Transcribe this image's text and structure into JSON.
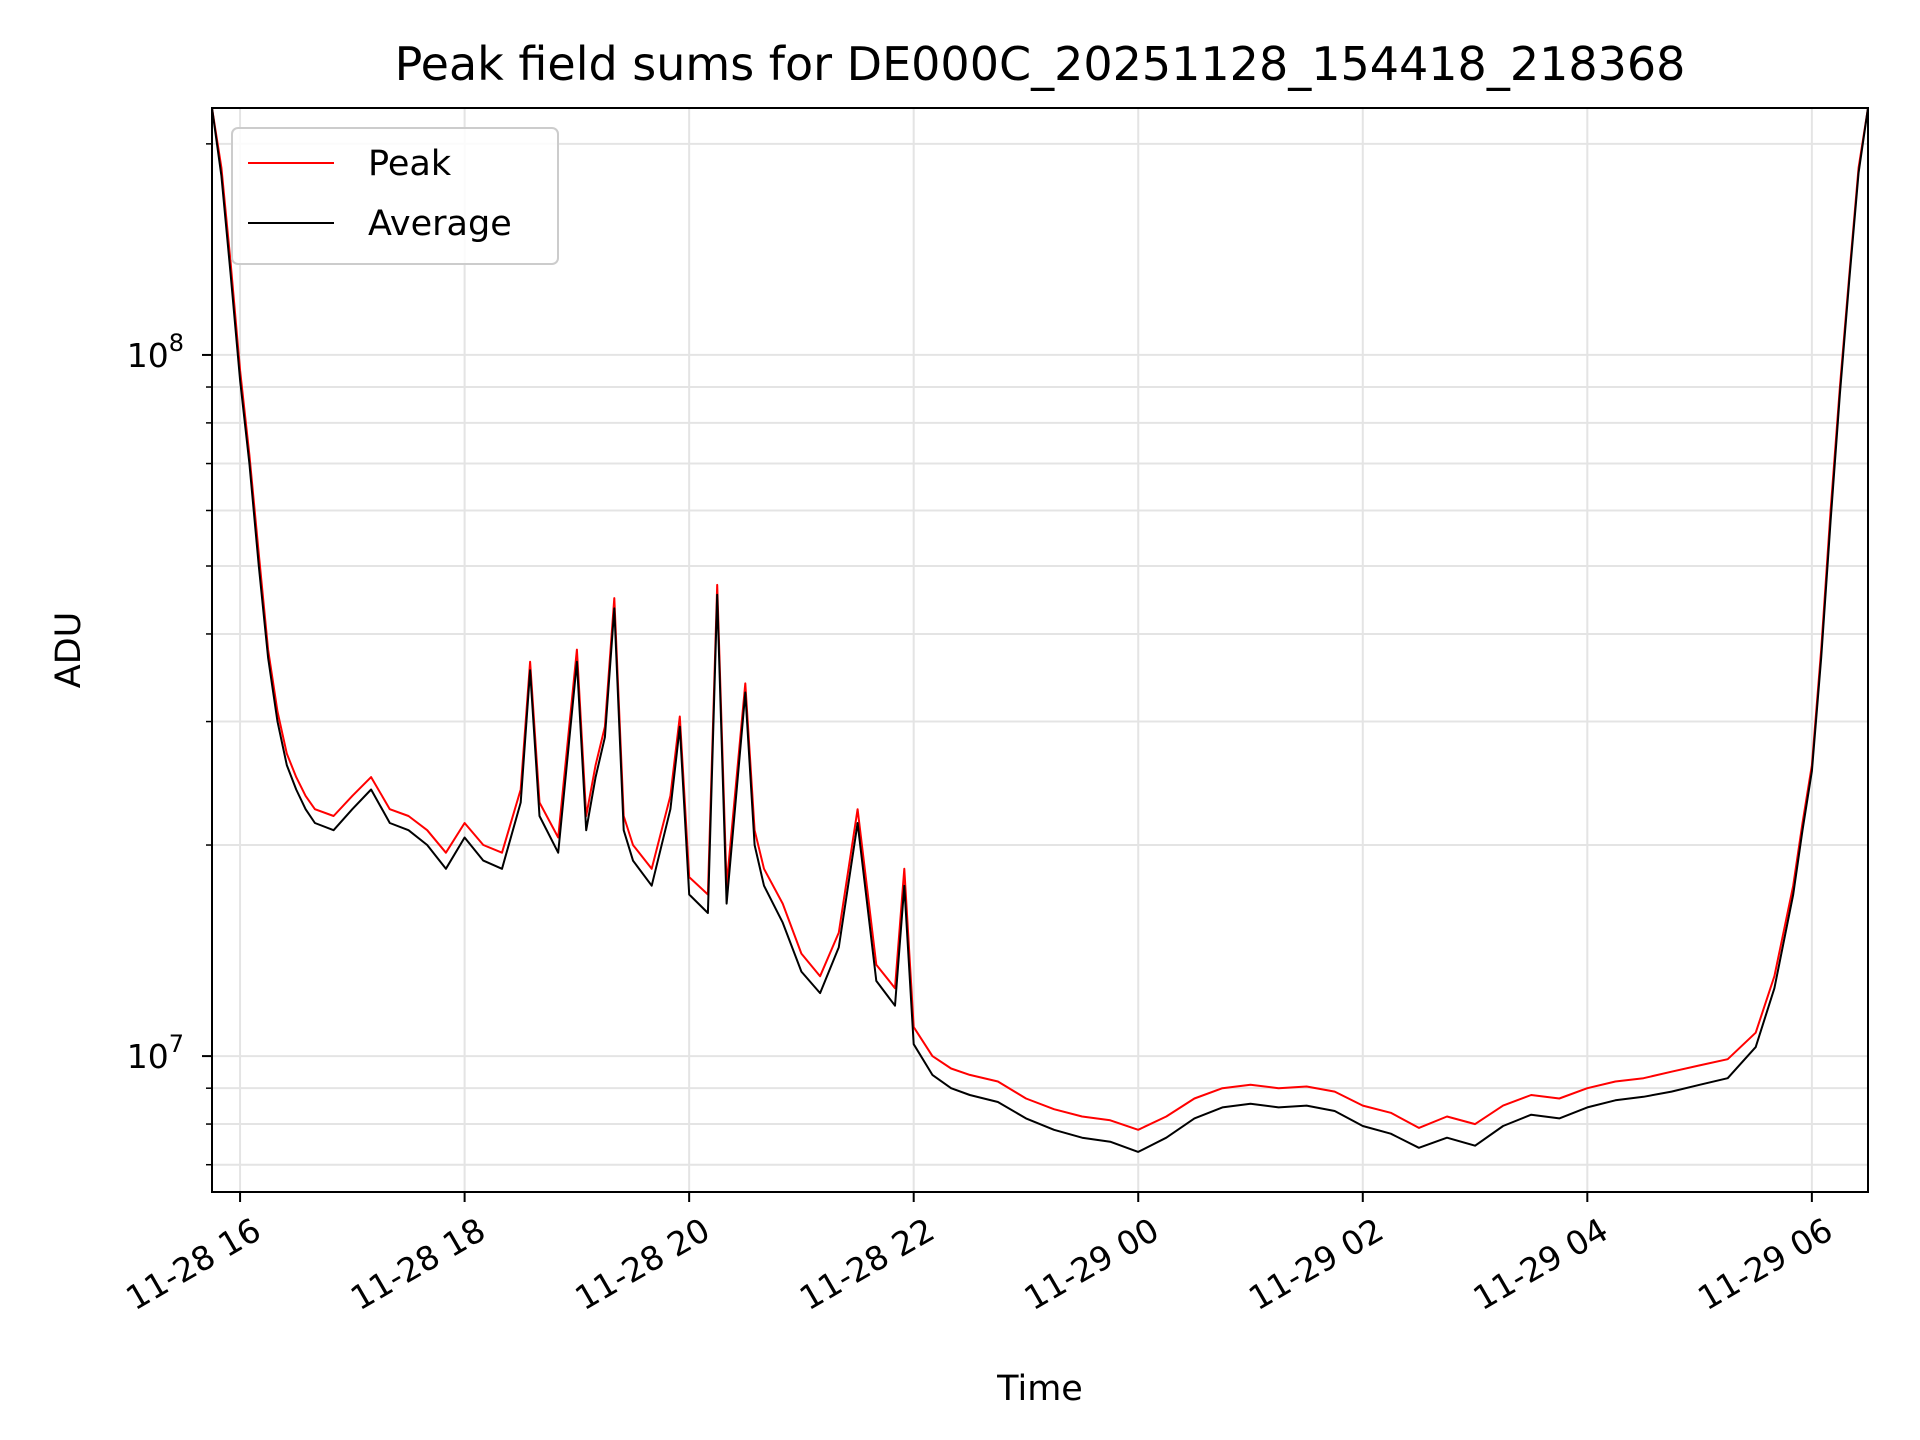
{
  "chart_data": {
    "type": "line",
    "title": "Peak field sums for DE000C_20251128_154418_218368",
    "xlabel": "Time",
    "ylabel": "ADU",
    "yscale": "log",
    "ylim": [
      6400000,
      225000000
    ],
    "xlim": [
      "2025-11-28 15:45",
      "2025-11-29 06:30"
    ],
    "grid": true,
    "legend_position": "top-left",
    "x_ticks": [
      "2025-11-28 16:00",
      "2025-11-28 18:00",
      "2025-11-28 20:00",
      "2025-11-28 22:00",
      "2025-11-29 00:00",
      "2025-11-29 02:00",
      "2025-11-29 04:00",
      "2025-11-29 06:00"
    ],
    "x_tick_labels": [
      "11-28 16",
      "11-28 18",
      "11-28 20",
      "11-28 22",
      "11-29 00",
      "11-29 02",
      "11-29 04",
      "11-29 06"
    ],
    "y_ticks": [
      10000000,
      100000000
    ],
    "y_tick_labels": [
      {
        "base": "10",
        "exp": "7"
      },
      {
        "base": "10",
        "exp": "8"
      }
    ],
    "series": [
      {
        "name": "Peak",
        "color": "#ff0000",
        "x": [
          "2025-11-28 15:45",
          "2025-11-28 15:50",
          "2025-11-28 15:55",
          "2025-11-28 16:00",
          "2025-11-28 16:05",
          "2025-11-28 16:10",
          "2025-11-28 16:15",
          "2025-11-28 16:20",
          "2025-11-28 16:25",
          "2025-11-28 16:30",
          "2025-11-28 16:35",
          "2025-11-28 16:40",
          "2025-11-28 16:50",
          "2025-11-28 17:00",
          "2025-11-28 17:10",
          "2025-11-28 17:20",
          "2025-11-28 17:30",
          "2025-11-28 17:40",
          "2025-11-28 17:50",
          "2025-11-28 18:00",
          "2025-11-28 18:10",
          "2025-11-28 18:20",
          "2025-11-28 18:30",
          "2025-11-28 18:35",
          "2025-11-28 18:40",
          "2025-11-28 18:50",
          "2025-11-28 19:00",
          "2025-11-28 19:05",
          "2025-11-28 19:10",
          "2025-11-28 19:15",
          "2025-11-28 19:20",
          "2025-11-28 19:25",
          "2025-11-28 19:30",
          "2025-11-28 19:40",
          "2025-11-28 19:50",
          "2025-11-28 19:55",
          "2025-11-28 20:00",
          "2025-11-28 20:10",
          "2025-11-28 20:15",
          "2025-11-28 20:20",
          "2025-11-28 20:30",
          "2025-11-28 20:35",
          "2025-11-28 20:40",
          "2025-11-28 20:50",
          "2025-11-28 21:00",
          "2025-11-28 21:10",
          "2025-11-28 21:20",
          "2025-11-28 21:30",
          "2025-11-28 21:40",
          "2025-11-28 21:50",
          "2025-11-28 21:55",
          "2025-11-28 22:00",
          "2025-11-28 22:10",
          "2025-11-28 22:20",
          "2025-11-28 22:30",
          "2025-11-28 22:45",
          "2025-11-28 23:00",
          "2025-11-28 23:15",
          "2025-11-28 23:30",
          "2025-11-28 23:45",
          "2025-11-29 00:00",
          "2025-11-29 00:15",
          "2025-11-29 00:30",
          "2025-11-29 00:45",
          "2025-11-29 01:00",
          "2025-11-29 01:15",
          "2025-11-29 01:30",
          "2025-11-29 01:45",
          "2025-11-29 02:00",
          "2025-11-29 02:15",
          "2025-11-29 02:30",
          "2025-11-29 02:45",
          "2025-11-29 03:00",
          "2025-11-29 03:15",
          "2025-11-29 03:30",
          "2025-11-29 03:45",
          "2025-11-29 04:00",
          "2025-11-29 04:15",
          "2025-11-29 04:30",
          "2025-11-29 04:45",
          "2025-11-29 05:00",
          "2025-11-29 05:15",
          "2025-11-29 05:30",
          "2025-11-29 05:40",
          "2025-11-29 05:50",
          "2025-11-29 05:55",
          "2025-11-29 06:00",
          "2025-11-29 06:05",
          "2025-11-29 06:10",
          "2025-11-29 06:15",
          "2025-11-29 06:20",
          "2025-11-29 06:25",
          "2025-11-29 06:30"
        ],
        "y": [
          225000000,
          185000000,
          135000000,
          95000000,
          72000000,
          52000000,
          38000000,
          31000000,
          27000000,
          25000000,
          23500000,
          22500000,
          22000000,
          23500000,
          25000000,
          22500000,
          22000000,
          21000000,
          19500000,
          21500000,
          20000000,
          19500000,
          24000000,
          36500000,
          23000000,
          20500000,
          38000000,
          22000000,
          26000000,
          29500000,
          45000000,
          22000000,
          20000000,
          18500000,
          23500000,
          30500000,
          18000000,
          17000000,
          47000000,
          17500000,
          34000000,
          21000000,
          18500000,
          16500000,
          14000000,
          13000000,
          15000000,
          22500000,
          13500000,
          12500000,
          18500000,
          11000000,
          10000000,
          9600000,
          9400000,
          9200000,
          8700000,
          8400000,
          8200000,
          8100000,
          7850000,
          8200000,
          8700000,
          9000000,
          9100000,
          9000000,
          9050000,
          8900000,
          8500000,
          8300000,
          7900000,
          8200000,
          8000000,
          8500000,
          8800000,
          8700000,
          9000000,
          9200000,
          9300000,
          9500000,
          9700000,
          9900000,
          10800000,
          13000000,
          17500000,
          21500000,
          26000000,
          38000000,
          60000000,
          90000000,
          130000000,
          185000000,
          225000000
        ]
      },
      {
        "name": "Average",
        "color": "#000000",
        "x": [
          "2025-11-28 15:45",
          "2025-11-28 15:50",
          "2025-11-28 15:55",
          "2025-11-28 16:00",
          "2025-11-28 16:05",
          "2025-11-28 16:10",
          "2025-11-28 16:15",
          "2025-11-28 16:20",
          "2025-11-28 16:25",
          "2025-11-28 16:30",
          "2025-11-28 16:35",
          "2025-11-28 16:40",
          "2025-11-28 16:50",
          "2025-11-28 17:00",
          "2025-11-28 17:10",
          "2025-11-28 17:20",
          "2025-11-28 17:30",
          "2025-11-28 17:40",
          "2025-11-28 17:50",
          "2025-11-28 18:00",
          "2025-11-28 18:10",
          "2025-11-28 18:20",
          "2025-11-28 18:30",
          "2025-11-28 18:35",
          "2025-11-28 18:40",
          "2025-11-28 18:50",
          "2025-11-28 19:00",
          "2025-11-28 19:05",
          "2025-11-28 19:10",
          "2025-11-28 19:15",
          "2025-11-28 19:20",
          "2025-11-28 19:25",
          "2025-11-28 19:30",
          "2025-11-28 19:40",
          "2025-11-28 19:50",
          "2025-11-28 19:55",
          "2025-11-28 20:00",
          "2025-11-28 20:10",
          "2025-11-28 20:15",
          "2025-11-28 20:20",
          "2025-11-28 20:30",
          "2025-11-28 20:35",
          "2025-11-28 20:40",
          "2025-11-28 20:50",
          "2025-11-28 21:00",
          "2025-11-28 21:10",
          "2025-11-28 21:20",
          "2025-11-28 21:30",
          "2025-11-28 21:40",
          "2025-11-28 21:50",
          "2025-11-28 21:55",
          "2025-11-28 22:00",
          "2025-11-28 22:10",
          "2025-11-28 22:20",
          "2025-11-28 22:30",
          "2025-11-28 22:45",
          "2025-11-28 23:00",
          "2025-11-28 23:15",
          "2025-11-28 23:30",
          "2025-11-28 23:45",
          "2025-11-29 00:00",
          "2025-11-29 00:15",
          "2025-11-29 00:30",
          "2025-11-29 00:45",
          "2025-11-29 01:00",
          "2025-11-29 01:15",
          "2025-11-29 01:30",
          "2025-11-29 01:45",
          "2025-11-29 02:00",
          "2025-11-29 02:15",
          "2025-11-29 02:30",
          "2025-11-29 02:45",
          "2025-11-29 03:00",
          "2025-11-29 03:15",
          "2025-11-29 03:30",
          "2025-11-29 03:45",
          "2025-11-29 04:00",
          "2025-11-29 04:15",
          "2025-11-29 04:30",
          "2025-11-29 04:45",
          "2025-11-29 05:00",
          "2025-11-29 05:15",
          "2025-11-29 05:30",
          "2025-11-29 05:40",
          "2025-11-29 05:50",
          "2025-11-29 05:55",
          "2025-11-29 06:00",
          "2025-11-29 06:05",
          "2025-11-29 06:10",
          "2025-11-29 06:15",
          "2025-11-29 06:20",
          "2025-11-29 06:25",
          "2025-11-29 06:30"
        ],
        "y": [
          225000000,
          180000000,
          130000000,
          92000000,
          70000000,
          50000000,
          37000000,
          30000000,
          26000000,
          24000000,
          22500000,
          21500000,
          21000000,
          22500000,
          24000000,
          21500000,
          21000000,
          20000000,
          18500000,
          20500000,
          19000000,
          18500000,
          23000000,
          35500000,
          22000000,
          19500000,
          36500000,
          21000000,
          25000000,
          28500000,
          43500000,
          21000000,
          19000000,
          17500000,
          22500000,
          29500000,
          17000000,
          16000000,
          45500000,
          16500000,
          33000000,
          20000000,
          17500000,
          15500000,
          13200000,
          12300000,
          14300000,
          21500000,
          12800000,
          11800000,
          17500000,
          10400000,
          9400000,
          9000000,
          8800000,
          8600000,
          8150000,
          7850000,
          7650000,
          7550000,
          7300000,
          7650000,
          8150000,
          8450000,
          8550000,
          8450000,
          8500000,
          8350000,
          7950000,
          7750000,
          7400000,
          7650000,
          7450000,
          7950000,
          8250000,
          8150000,
          8450000,
          8650000,
          8750000,
          8900000,
          9100000,
          9300000,
          10300000,
          12500000,
          17000000,
          21000000,
          25500000,
          37000000,
          58000000,
          88000000,
          128000000,
          182000000,
          225000000
        ]
      }
    ]
  }
}
